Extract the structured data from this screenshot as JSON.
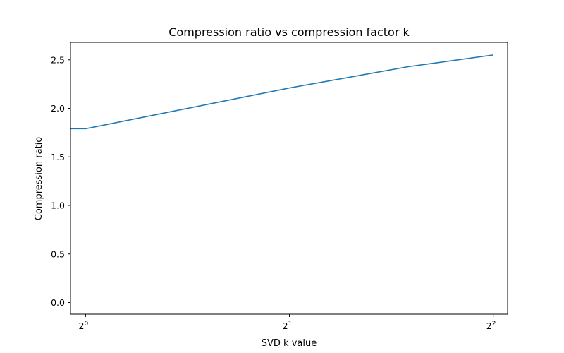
{
  "chart_data": {
    "type": "line",
    "title": "Compression ratio vs compression factor k",
    "xlabel": "SVD k value",
    "ylabel": "Compression ratio",
    "xscale": "log2",
    "xlim": [
      0.95,
      4.2
    ],
    "ylim": [
      -0.12,
      2.68
    ],
    "grid": false,
    "legend": "none",
    "x_ticks": [
      {
        "value": 1,
        "base": "2",
        "exp": "0"
      },
      {
        "value": 2,
        "base": "2",
        "exp": "1"
      },
      {
        "value": 4,
        "base": "2",
        "exp": "2"
      }
    ],
    "y_ticks": [
      {
        "value": 0.0,
        "label": "0.0"
      },
      {
        "value": 0.5,
        "label": "0.5"
      },
      {
        "value": 1.0,
        "label": "1.0"
      },
      {
        "value": 1.5,
        "label": "1.5"
      },
      {
        "value": 2.0,
        "label": "2.0"
      },
      {
        "value": 2.5,
        "label": "2.5"
      }
    ],
    "series": [
      {
        "color": "#1f77b4",
        "x": [
          0.95,
          1,
          2,
          3,
          4
        ],
        "y": [
          1.79,
          1.79,
          2.21,
          2.43,
          2.55
        ]
      }
    ]
  }
}
